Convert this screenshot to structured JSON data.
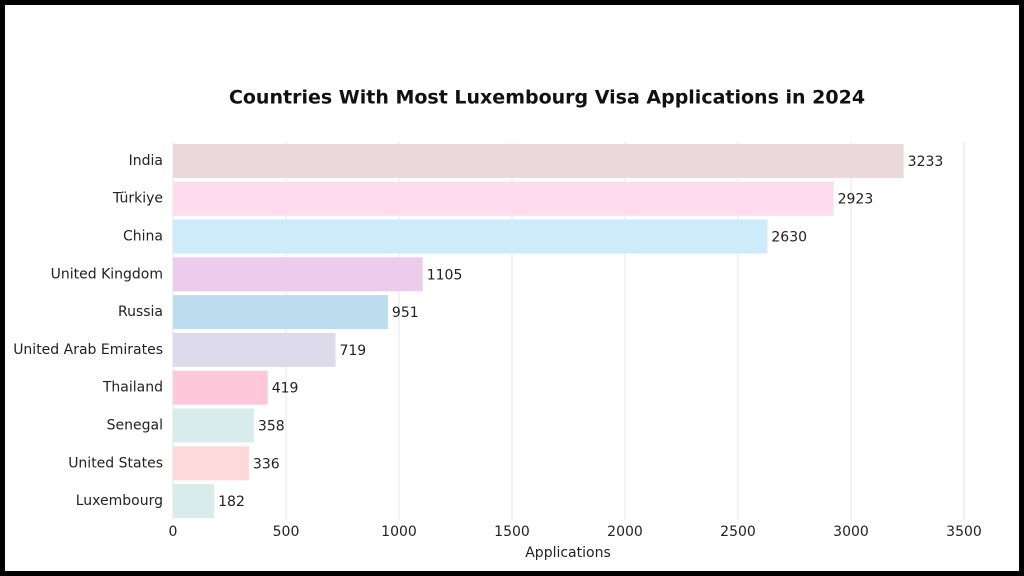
{
  "chart_data": {
    "type": "bar",
    "orientation": "horizontal",
    "title": "Countries With Most Luxembourg Visa Applications in 2024",
    "categories": [
      "India",
      "Türkiye",
      "China",
      "United Kingdom",
      "Russia",
      "United Arab Emirates",
      "Thailand",
      "Senegal",
      "United States",
      "Luxembourg"
    ],
    "values": [
      3233,
      2923,
      2630,
      1105,
      951,
      719,
      419,
      358,
      336,
      182
    ],
    "colors": [
      "#ead8da",
      "#fedcee",
      "#cdebfb",
      "#eccbec",
      "#bcdded",
      "#dddbeb",
      "#fec8da",
      "#d8eceb",
      "#fed9d9",
      "#d9ecec"
    ],
    "xlabel": "Applications",
    "xlim": [
      0,
      3500
    ],
    "xticks": [
      0,
      500,
      1000,
      1500,
      2000,
      2500,
      3000,
      3500
    ],
    "grid": true
  }
}
